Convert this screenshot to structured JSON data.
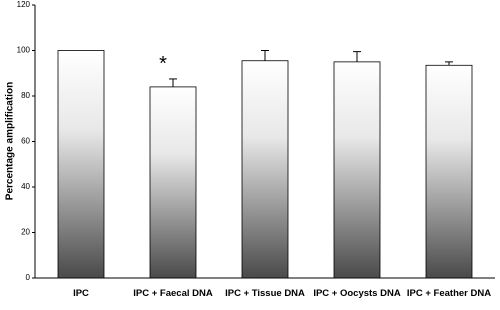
{
  "chart_data": {
    "type": "bar",
    "y_label": "Percentage amplification",
    "categories": [
      "IPC",
      "IPC + Faecal DNA",
      "IPC + Tissue DNA",
      "IPC + Oocysts DNA",
      "IPC + Feather DNA"
    ],
    "values": [
      100,
      84,
      95.5,
      95,
      93.5
    ],
    "errors": [
      0,
      3.5,
      4.5,
      4.5,
      1.5
    ],
    "annotation": "*",
    "annotation_index": 1,
    "ylim": [
      0,
      120
    ],
    "yticks": [
      0,
      20,
      40,
      60,
      80,
      100,
      120
    ],
    "grid": false
  }
}
